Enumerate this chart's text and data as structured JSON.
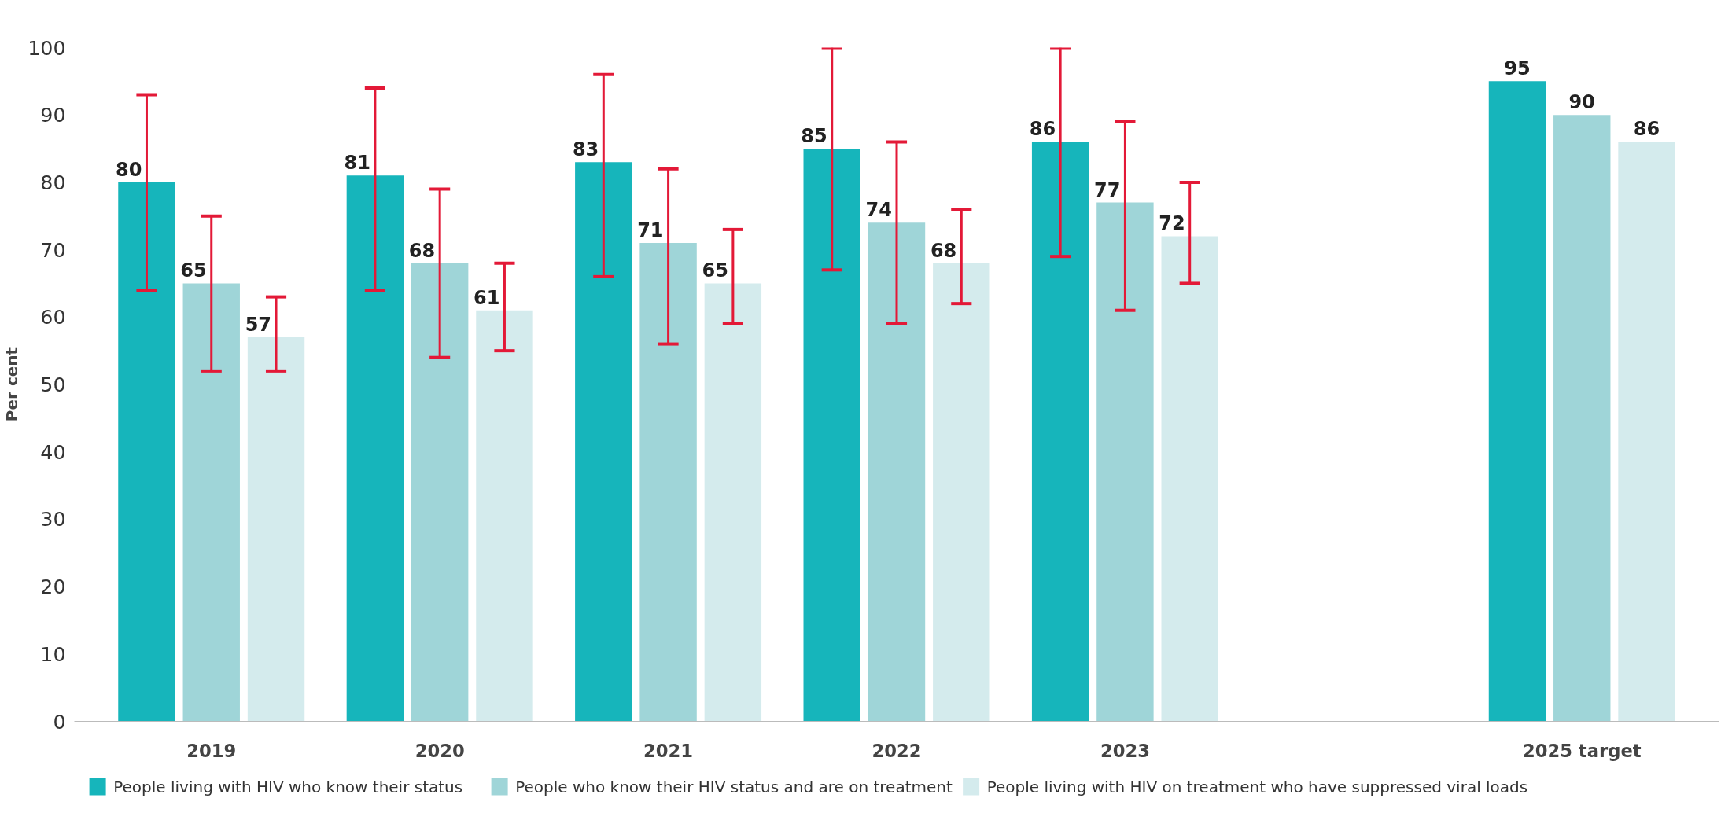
{
  "chart_data": {
    "type": "bar",
    "ylabel": "Per cent",
    "categories": [
      "2019",
      "2020",
      "2021",
      "2022",
      "2023",
      null,
      "2025 target"
    ],
    "series": [
      {
        "name": "People living with HIV who know their status",
        "color": "#16b5bb",
        "values": [
          80,
          81,
          83,
          85,
          86,
          null,
          95
        ],
        "errors": [
          [
            64,
            93
          ],
          [
            64,
            94
          ],
          [
            66,
            96
          ],
          [
            67,
            100
          ],
          [
            69,
            100
          ],
          null,
          null
        ]
      },
      {
        "name": "People who know their HIV status and are on treatment",
        "color": "#9fd5d8",
        "values": [
          65,
          68,
          71,
          74,
          77,
          null,
          90
        ],
        "errors": [
          [
            52,
            75
          ],
          [
            54,
            79
          ],
          [
            56,
            82
          ],
          [
            59,
            86
          ],
          [
            61,
            89
          ],
          null,
          null
        ]
      },
      {
        "name": "People living with HIV on treatment who have suppressed viral loads",
        "color": "#d4ebed",
        "values": [
          57,
          61,
          65,
          68,
          72,
          null,
          86
        ],
        "errors": [
          [
            52,
            63
          ],
          [
            55,
            68
          ],
          [
            59,
            73
          ],
          [
            62,
            76
          ],
          [
            65,
            80
          ],
          null,
          null
        ]
      }
    ],
    "ylim": [
      0,
      100
    ],
    "yticks": [
      0,
      10,
      20,
      30,
      40,
      50,
      60,
      70,
      80,
      90,
      100
    ],
    "grid": false,
    "legend": "bottom",
    "data_labels": true
  }
}
